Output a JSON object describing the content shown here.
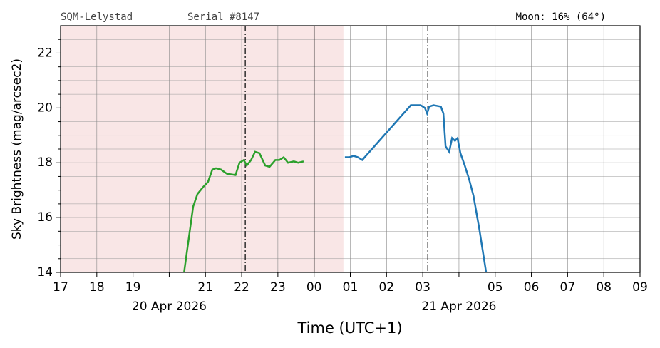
{
  "chart_data": {
    "type": "line",
    "header_left": "SQM-Lelystad",
    "header_mid": "Serial #8147",
    "header_right": "Moon: 16% (64°)",
    "ylabel": "Sky Brightness (mag/arcsec2)",
    "xlabel": "Time (UTC+1)",
    "xlim": [
      0,
      16
    ],
    "ylim": [
      14,
      23
    ],
    "xticks": [
      {
        "value": 0,
        "label": "17"
      },
      {
        "value": 1,
        "label": "18"
      },
      {
        "value": 2,
        "label": "19"
      },
      {
        "value": 3,
        "label": "20 Apr 2026"
      },
      {
        "value": 4,
        "label": "21"
      },
      {
        "value": 5,
        "label": "22"
      },
      {
        "value": 6,
        "label": "23"
      },
      {
        "value": 7,
        "label": "00"
      },
      {
        "value": 8,
        "label": "01"
      },
      {
        "value": 9,
        "label": "02"
      },
      {
        "value": 10,
        "label": "03"
      },
      {
        "value": 11,
        "label": "21 Apr 2026"
      },
      {
        "value": 12,
        "label": "05"
      },
      {
        "value": 13,
        "label": "06"
      },
      {
        "value": 14,
        "label": "07"
      },
      {
        "value": 15,
        "label": "08"
      },
      {
        "value": 16,
        "label": "09"
      }
    ],
    "yticks": [
      14,
      16,
      18,
      20,
      22
    ],
    "yminorticks": [
      14.5,
      15,
      15.5,
      16.5,
      17,
      17.5,
      18.5,
      19,
      19.5,
      20.5,
      21,
      21.5,
      22.5
    ],
    "grid": true,
    "shaded_span": {
      "from": 0,
      "to": 7.81,
      "color": "#f9e6e6"
    },
    "vlines": [
      {
        "x": 5.1,
        "style": "dashdot"
      },
      {
        "x": 7,
        "style": "solid"
      },
      {
        "x": 10.14,
        "style": "dashdot"
      }
    ],
    "series": [
      {
        "color": "#2ca02c",
        "x": [
          3.41,
          3.66,
          3.78,
          3.94,
          4.07,
          4.19,
          4.29,
          4.43,
          4.59,
          4.83,
          4.94,
          5.06,
          5.14,
          5.26,
          5.37,
          5.49,
          5.65,
          5.77,
          5.93,
          6.04,
          6.16,
          6.28,
          6.44,
          6.56,
          6.71
        ],
        "values": [
          14.0,
          16.4,
          16.86,
          17.12,
          17.3,
          17.75,
          17.8,
          17.75,
          17.6,
          17.55,
          18.0,
          18.1,
          17.9,
          18.1,
          18.4,
          18.35,
          17.9,
          17.85,
          18.1,
          18.1,
          18.2,
          18.0,
          18.05,
          18.0,
          18.05
        ]
      },
      {
        "color": "#1f77b4",
        "x": [
          7.85,
          7.97,
          8.09,
          8.21,
          8.33,
          9.67,
          9.94,
          10.06,
          10.12,
          10.18,
          10.3,
          10.5,
          10.57,
          10.63,
          10.73,
          10.81,
          10.89,
          10.96,
          11.04,
          11.16,
          11.28,
          11.4,
          11.56,
          11.75
        ],
        "values": [
          18.2,
          18.2,
          18.25,
          18.2,
          18.1,
          20.1,
          20.1,
          20.0,
          19.8,
          20.05,
          20.1,
          20.05,
          19.8,
          18.6,
          18.4,
          18.9,
          18.8,
          18.9,
          18.35,
          17.9,
          17.4,
          16.8,
          15.6,
          14.0
        ]
      }
    ]
  }
}
